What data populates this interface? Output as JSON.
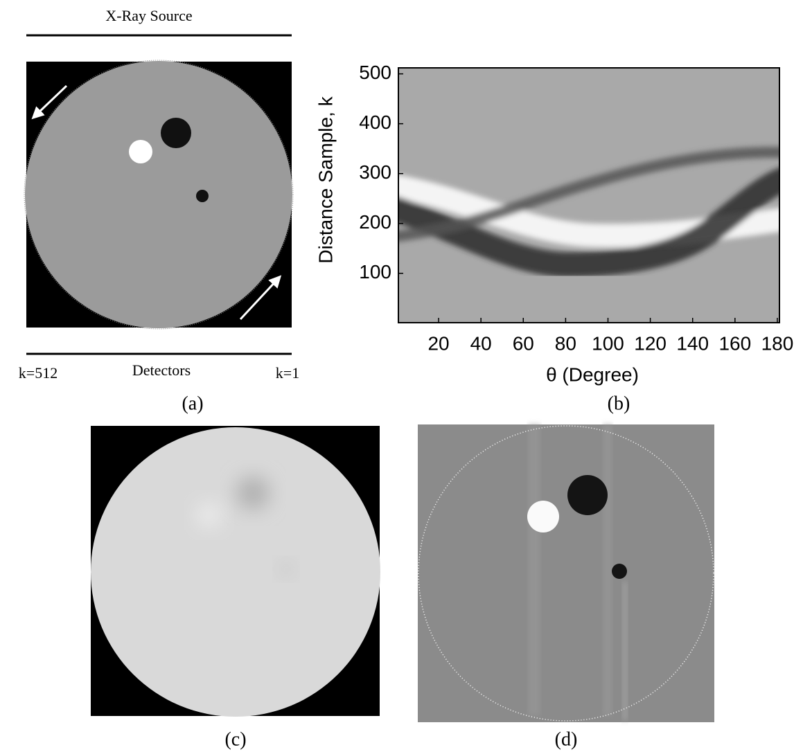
{
  "panel_a": {
    "source_label": "X-Ray Source",
    "detector_label": "Detectors",
    "k_left": "k=512",
    "k_right": "k=1"
  },
  "chart_data": {
    "type": "heatmap",
    "x_label": "θ (Degree)",
    "y_label": "Distance Sample, k",
    "xlim": [
      1,
      181
    ],
    "ylim": [
      1,
      512
    ],
    "xticks": [
      20,
      40,
      60,
      80,
      100,
      120,
      140,
      160,
      180
    ],
    "yticks": [
      100,
      200,
      300,
      400,
      500
    ]
  },
  "captions": [
    "(a)",
    "(b)",
    "(c)",
    "(d)"
  ]
}
